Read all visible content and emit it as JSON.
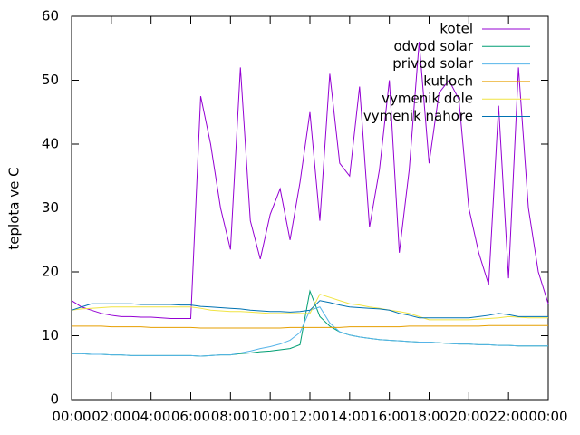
{
  "chart_data": {
    "type": "line",
    "ylabel": "teplota ve C",
    "ylim": [
      0,
      60
    ],
    "yticks": [
      0,
      10,
      20,
      30,
      40,
      50,
      60
    ],
    "xlim": [
      0,
      24
    ],
    "xticks": [
      {
        "value": 0,
        "label": "00:00"
      },
      {
        "value": 2,
        "label": "02:00"
      },
      {
        "value": 4,
        "label": "04:00"
      },
      {
        "value": 6,
        "label": "06:00"
      },
      {
        "value": 8,
        "label": "08:00"
      },
      {
        "value": 10,
        "label": "10:00"
      },
      {
        "value": 12,
        "label": "12:00"
      },
      {
        "value": 14,
        "label": "14:00"
      },
      {
        "value": 16,
        "label": "16:00"
      },
      {
        "value": 18,
        "label": "18:00"
      },
      {
        "value": 20,
        "label": "20:00"
      },
      {
        "value": 22,
        "label": "22:00"
      },
      {
        "value": 24,
        "label": "00:00"
      }
    ],
    "legend": "top-right",
    "x": [
      0,
      0.5,
      1,
      1.5,
      2,
      2.5,
      3,
      3.5,
      4,
      4.5,
      5,
      5.5,
      6,
      6.5,
      7,
      7.5,
      8,
      8.5,
      9,
      9.5,
      10,
      10.5,
      11,
      11.5,
      12,
      12.5,
      13,
      13.5,
      14,
      14.5,
      15,
      15.5,
      16,
      16.5,
      17,
      17.5,
      18,
      18.5,
      19,
      19.5,
      20,
      20.5,
      21,
      21.5,
      22,
      22.5,
      23,
      23.5,
      24
    ],
    "series": [
      {
        "name": "kotel",
        "color": "#9400d3",
        "values": [
          15.5,
          14.5,
          14,
          13.5,
          13.2,
          13,
          13,
          12.9,
          12.9,
          12.8,
          12.7,
          12.7,
          12.7,
          47.5,
          40,
          30,
          23.5,
          52,
          28,
          22,
          29,
          33,
          25,
          34,
          45,
          28,
          51,
          37,
          35,
          49,
          27,
          36,
          50,
          23,
          36,
          56,
          37,
          48,
          50,
          47,
          30,
          23,
          18,
          46,
          19,
          52,
          30,
          20,
          15
        ]
      },
      {
        "name": "odvod solar",
        "color": "#009e73",
        "values": [
          7.2,
          7.2,
          7.1,
          7.1,
          7.0,
          7.0,
          6.9,
          6.9,
          6.9,
          6.9,
          6.9,
          6.9,
          6.9,
          6.8,
          6.9,
          7.0,
          7.0,
          7.2,
          7.3,
          7.5,
          7.6,
          7.8,
          8.0,
          8.6,
          17.0,
          13.0,
          11.5,
          10.6,
          10.1,
          9.8,
          9.6,
          9.4,
          9.3,
          9.2,
          9.1,
          9.0,
          9.0,
          8.9,
          8.8,
          8.7,
          8.7,
          8.6,
          8.6,
          8.5,
          8.5,
          8.4,
          8.4,
          8.4,
          8.4
        ]
      },
      {
        "name": "privod solar",
        "color": "#56b4e9",
        "values": [
          7.2,
          7.2,
          7.1,
          7.1,
          7.0,
          7.0,
          6.9,
          6.9,
          6.9,
          6.9,
          6.9,
          6.9,
          6.9,
          6.8,
          6.9,
          7.0,
          7.0,
          7.3,
          7.6,
          8.0,
          8.3,
          8.7,
          9.3,
          10.5,
          14.0,
          14.5,
          12.0,
          10.6,
          10.1,
          9.8,
          9.6,
          9.4,
          9.3,
          9.2,
          9.1,
          9.0,
          9.0,
          8.9,
          8.8,
          8.7,
          8.7,
          8.6,
          8.6,
          8.5,
          8.5,
          8.4,
          8.4,
          8.4,
          8.4
        ]
      },
      {
        "name": "kutloch",
        "color": "#e69f00",
        "values": [
          11.5,
          11.5,
          11.5,
          11.5,
          11.4,
          11.4,
          11.4,
          11.4,
          11.3,
          11.3,
          11.3,
          11.3,
          11.3,
          11.2,
          11.2,
          11.2,
          11.2,
          11.2,
          11.2,
          11.2,
          11.2,
          11.2,
          11.3,
          11.3,
          11.3,
          11.3,
          11.3,
          11.3,
          11.4,
          11.4,
          11.4,
          11.4,
          11.4,
          11.4,
          11.5,
          11.5,
          11.5,
          11.5,
          11.5,
          11.5,
          11.5,
          11.5,
          11.6,
          11.6,
          11.6,
          11.6,
          11.6,
          11.6,
          11.6
        ]
      },
      {
        "name": "vymenik dole",
        "color": "#f0e442",
        "values": [
          14,
          14.2,
          14.3,
          14.4,
          14.5,
          14.5,
          14.5,
          14.5,
          14.5,
          14.5,
          14.5,
          14.5,
          14.5,
          14.3,
          14,
          13.9,
          13.8,
          13.8,
          13.7,
          13.6,
          13.5,
          13.5,
          13.5,
          13.5,
          13.5,
          16.5,
          16,
          15.5,
          15,
          14.8,
          14.5,
          14.3,
          14,
          13.8,
          13.5,
          13,
          12.5,
          12.5,
          12.5,
          12.5,
          12.5,
          12.6,
          12.7,
          12.8,
          13,
          12.9,
          12.8,
          12.8,
          12.8
        ]
      },
      {
        "name": "vymenik nahore",
        "color": "#0072b2",
        "values": [
          14,
          14.5,
          15,
          15,
          15,
          15,
          15,
          14.9,
          14.9,
          14.9,
          14.9,
          14.8,
          14.8,
          14.6,
          14.5,
          14.4,
          14.3,
          14.2,
          14,
          13.9,
          13.8,
          13.8,
          13.7,
          13.8,
          14,
          15.5,
          15.2,
          14.8,
          14.5,
          14.4,
          14.3,
          14.2,
          14,
          13.5,
          13.2,
          12.8,
          12.8,
          12.8,
          12.8,
          12.8,
          12.8,
          13,
          13.2,
          13.5,
          13.3,
          13,
          13,
          13,
          13
        ]
      }
    ]
  }
}
